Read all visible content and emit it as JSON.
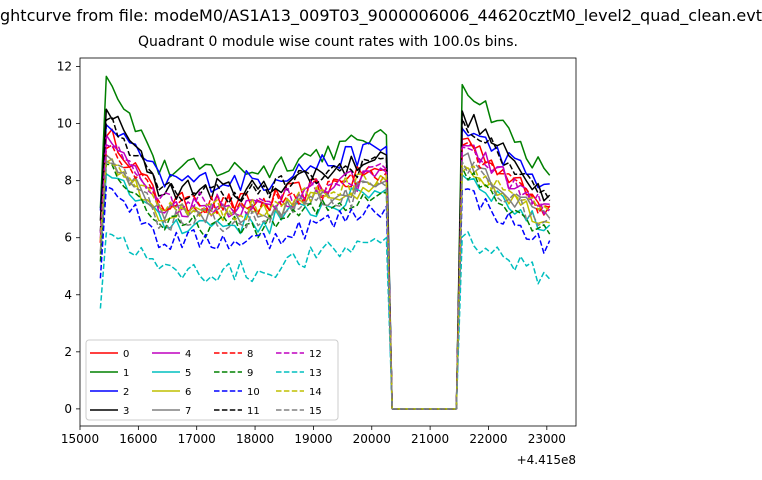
{
  "figure": {
    "suptitle": "ghtcurve from file: modeM0/AS1A13_009T03_9000006006_44620cztM0_level2_quad_clean.evt",
    "title": "Quadrant 0 module wise count rates with 100.0s bins.",
    "offset_label": "+4.415e8"
  },
  "chart_data": {
    "type": "line",
    "title": "Quadrant 0 module wise count rates with 100.0s bins.",
    "xlabel": "",
    "ylabel": "",
    "xlim": [
      15000,
      23500
    ],
    "ylim": [
      -0.6,
      12.3
    ],
    "x_offset_label": "+4.415e8",
    "xticks": [
      15000,
      16000,
      17000,
      18000,
      19000,
      20000,
      21000,
      22000,
      23000
    ],
    "yticks": [
      0,
      2,
      4,
      6,
      8,
      10,
      12
    ],
    "grid": false,
    "legend": "lower-left, 4 columns",
    "x_segments": [
      {
        "start": 15350,
        "end": 20250,
        "step": 100
      },
      {
        "start": 21550,
        "end": 23050,
        "step": 100
      }
    ],
    "gap": {
      "start": 20350,
      "end": 21450,
      "value": 0
    },
    "series": [
      {
        "name": "0",
        "color": "#ff0000",
        "dash": "solid",
        "level": 7.4,
        "peak": 9.8
      },
      {
        "name": "1",
        "color": "#008000",
        "dash": "solid",
        "level": 8.6,
        "peak": 11.7
      },
      {
        "name": "2",
        "color": "#0000ff",
        "dash": "solid",
        "level": 8.2,
        "peak": 10.1
      },
      {
        "name": "3",
        "color": "#000000",
        "dash": "solid",
        "level": 7.9,
        "peak": 10.6
      },
      {
        "name": "4",
        "color": "#bf00bf",
        "dash": "solid",
        "level": 7.3,
        "peak": 9.6
      },
      {
        "name": "5",
        "color": "#00bfbf",
        "dash": "solid",
        "level": 6.7,
        "peak": 8.5
      },
      {
        "name": "6",
        "color": "#bfbf00",
        "dash": "solid",
        "level": 7.0,
        "peak": 8.8
      },
      {
        "name": "7",
        "color": "#808080",
        "dash": "solid",
        "level": 7.0,
        "peak": 9.0
      },
      {
        "name": "8",
        "color": "#ff0000",
        "dash": "dashed",
        "level": 7.3,
        "peak": 9.4
      },
      {
        "name": "9",
        "color": "#008000",
        "dash": "dashed",
        "level": 6.6,
        "peak": 8.6
      },
      {
        "name": "10",
        "color": "#0000ff",
        "dash": "dashed",
        "level": 6.1,
        "peak": 7.9
      },
      {
        "name": "11",
        "color": "#000000",
        "dash": "dashed",
        "level": 7.8,
        "peak": 10.3
      },
      {
        "name": "12",
        "color": "#bf00bf",
        "dash": "dashed",
        "level": 7.4,
        "peak": 9.5
      },
      {
        "name": "13",
        "color": "#00bfbf",
        "dash": "dashed",
        "level": 5.0,
        "peak": 6.3
      },
      {
        "name": "14",
        "color": "#bfbf00",
        "dash": "dashed",
        "level": 7.2,
        "peak": 8.9
      },
      {
        "name": "15",
        "color": "#808080",
        "dash": "dashed",
        "level": 6.8,
        "peak": 8.9
      }
    ]
  }
}
